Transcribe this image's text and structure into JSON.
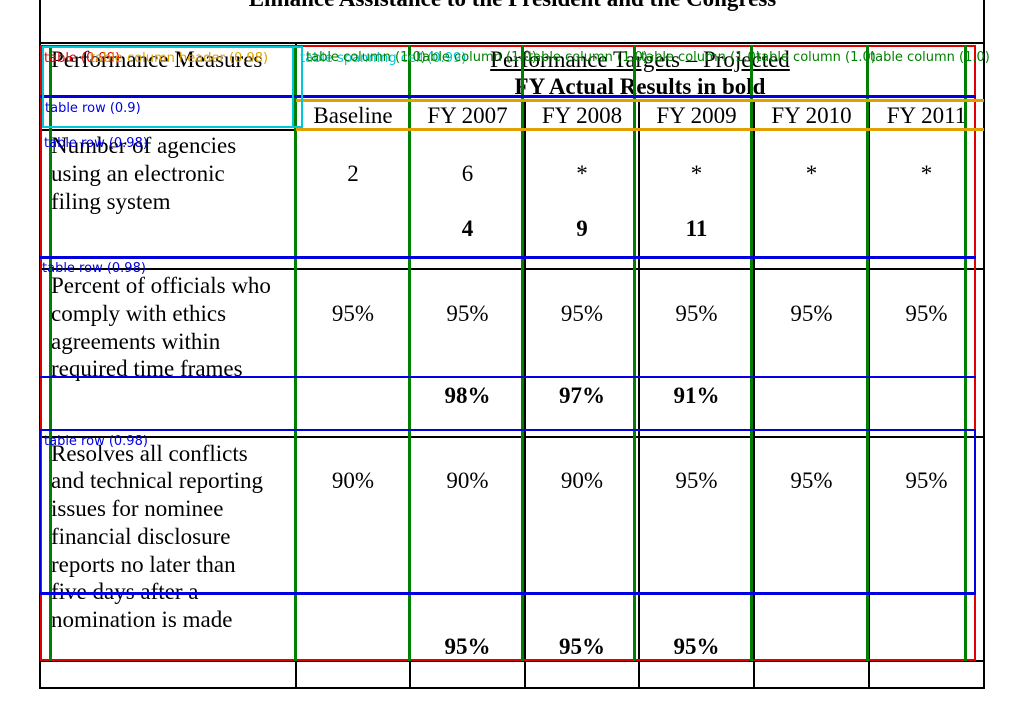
{
  "title": "Enhance Assistance to the President and the Congress",
  "header": {
    "measures_label": "Performance Measures",
    "targets_label": "Performance Targets – Projected",
    "actual_label": "FY Actual Results in bold",
    "years": [
      "Baseline",
      "FY 2007",
      "FY 2008",
      "FY 2009",
      "FY 2010",
      "FY 2011"
    ]
  },
  "rows": [
    {
      "measure_lines": [
        "Number of agencies",
        "using an electronic",
        "filing system"
      ],
      "targets": [
        "2",
        "6",
        "*",
        "*",
        "*",
        "*"
      ],
      "actuals": [
        "",
        "4",
        "9",
        "11",
        "",
        ""
      ]
    },
    {
      "measure_lines": [
        "Percent of officials who",
        "comply with ethics",
        "agreements within",
        "required time frames"
      ],
      "targets": [
        "95%",
        "95%",
        "95%",
        "95%",
        "95%",
        "95%"
      ],
      "actuals": [
        "",
        "98%",
        "97%",
        "91%",
        "",
        ""
      ]
    },
    {
      "measure_lines": [
        "Resolves all conflicts",
        "and technical reporting",
        "issues for nominee",
        "financial disclosure",
        "reports no later than",
        "five days after a",
        "nomination is made"
      ],
      "targets": [
        "90%",
        "90%",
        "90%",
        "95%",
        "95%",
        "95%"
      ],
      "actuals": [
        "",
        "95%",
        "95%",
        "95%",
        "",
        ""
      ]
    }
  ],
  "overlay": {
    "table_label": "table (0.99)",
    "header_label": "table column header (0.98)",
    "spanning_label": "table spanning cell (0.99)",
    "column_label": "table column (1.0)",
    "row_label": "table row (0.9)",
    "row2_label": "table row (0.98)",
    "colors": {
      "table": "#e00000",
      "column": "#008000",
      "row": "#0000e0",
      "header": "#e0a000",
      "spanning": "#00c8d8"
    }
  }
}
